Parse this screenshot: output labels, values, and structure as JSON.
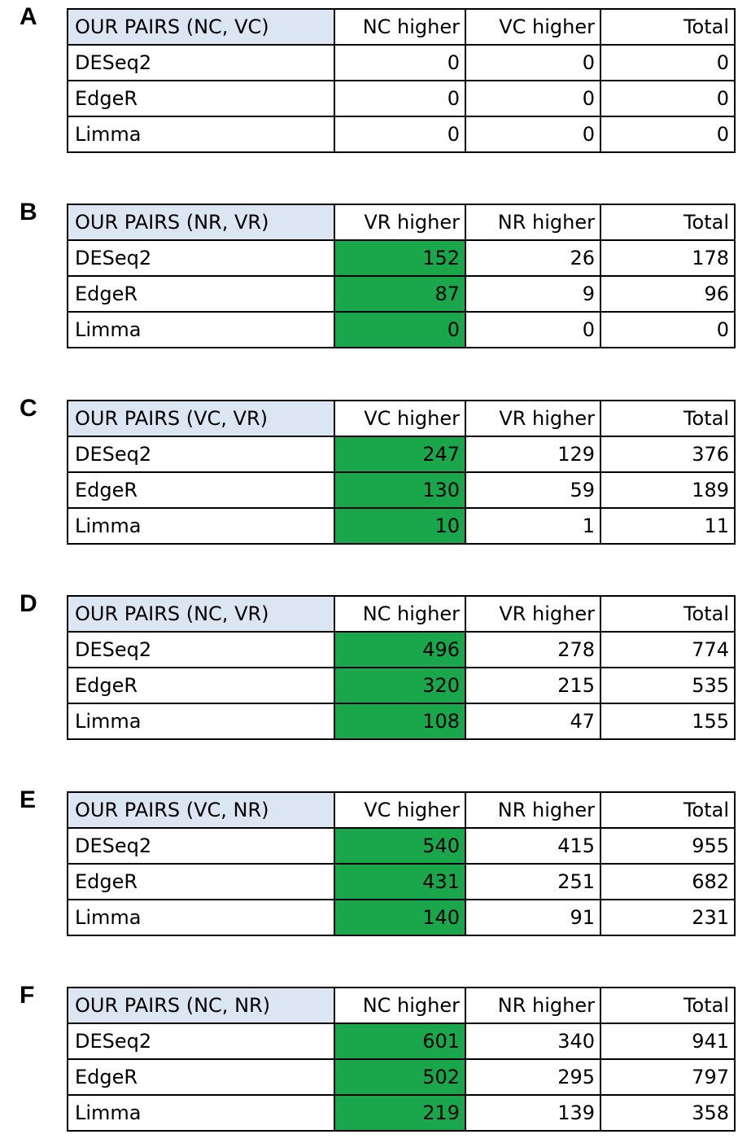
{
  "highlight_color": "#1aa64a",
  "header_fill_color": "#dce6f2",
  "panels": [
    {
      "letter": "A",
      "title": "OUR PAIRS (NC, VC)",
      "col1": "NC higher",
      "col2": "VC higher",
      "col3": "Total",
      "highlight_first_col": false,
      "rows": [
        {
          "method": "DESeq2",
          "v1": "0",
          "v2": "0",
          "total": "0"
        },
        {
          "method": "EdgeR",
          "v1": "0",
          "v2": "0",
          "total": "0"
        },
        {
          "method": "Limma",
          "v1": "0",
          "v2": "0",
          "total": "0"
        }
      ]
    },
    {
      "letter": "B",
      "title": "OUR PAIRS (NR, VR)",
      "col1": "VR higher",
      "col2": "NR higher",
      "col3": "Total",
      "highlight_first_col": true,
      "rows": [
        {
          "method": "DESeq2",
          "v1": "152",
          "v2": "26",
          "total": "178"
        },
        {
          "method": "EdgeR",
          "v1": "87",
          "v2": "9",
          "total": "96"
        },
        {
          "method": "Limma",
          "v1": "0",
          "v2": "0",
          "total": "0"
        }
      ]
    },
    {
      "letter": "C",
      "title": "OUR PAIRS (VC, VR)",
      "col1": "VC higher",
      "col2": "VR higher",
      "col3": "Total",
      "highlight_first_col": true,
      "rows": [
        {
          "method": "DESeq2",
          "v1": "247",
          "v2": "129",
          "total": "376"
        },
        {
          "method": "EdgeR",
          "v1": "130",
          "v2": "59",
          "total": "189"
        },
        {
          "method": "Limma",
          "v1": "10",
          "v2": "1",
          "total": "11"
        }
      ]
    },
    {
      "letter": "D",
      "title": "OUR PAIRS (NC, VR)",
      "col1": "NC higher",
      "col2": "VR higher",
      "col3": "Total",
      "highlight_first_col": true,
      "rows": [
        {
          "method": "DESeq2",
          "v1": "496",
          "v2": "278",
          "total": "774"
        },
        {
          "method": "EdgeR",
          "v1": "320",
          "v2": "215",
          "total": "535"
        },
        {
          "method": "Limma",
          "v1": "108",
          "v2": "47",
          "total": "155"
        }
      ]
    },
    {
      "letter": "E",
      "title": "OUR PAIRS (VC, NR)",
      "col1": "VC higher",
      "col2": "NR higher",
      "col3": "Total",
      "highlight_first_col": true,
      "rows": [
        {
          "method": "DESeq2",
          "v1": "540",
          "v2": "415",
          "total": "955"
        },
        {
          "method": "EdgeR",
          "v1": "431",
          "v2": "251",
          "total": "682"
        },
        {
          "method": "Limma",
          "v1": "140",
          "v2": "91",
          "total": "231"
        }
      ]
    },
    {
      "letter": "F",
      "title": "OUR PAIRS (NC, NR)",
      "col1": "NC higher",
      "col2": "NR higher",
      "col3": "Total",
      "highlight_first_col": true,
      "rows": [
        {
          "method": "DESeq2",
          "v1": "601",
          "v2": "340",
          "total": "941"
        },
        {
          "method": "EdgeR",
          "v1": "502",
          "v2": "295",
          "total": "797"
        },
        {
          "method": "Limma",
          "v1": "219",
          "v2": "139",
          "total": "358"
        }
      ]
    }
  ]
}
